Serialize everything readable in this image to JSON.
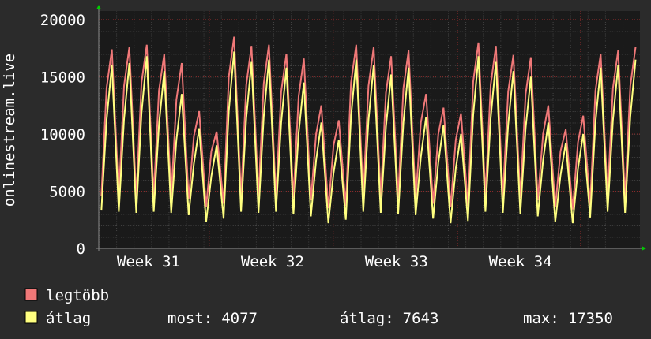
{
  "chart_data": {
    "type": "line",
    "ylabel": "onlinestream.live",
    "x": [
      0.15,
      0.45,
      0.75,
      1.15,
      1.45,
      1.75,
      2.15,
      2.45,
      2.75,
      3.15,
      3.45,
      3.75,
      4.15,
      4.45,
      4.75,
      5.15,
      5.45,
      5.75,
      6.15,
      6.45,
      6.75,
      7.15,
      7.45,
      7.75,
      8.15,
      8.45,
      8.75,
      9.15,
      9.45,
      9.75,
      10.15,
      10.45,
      10.75,
      11.15,
      11.45,
      11.75,
      12.15,
      12.45,
      12.75,
      13.15,
      13.45,
      13.75,
      14.15,
      14.45,
      14.75,
      15.15,
      15.45,
      15.75,
      16.15,
      16.45,
      16.75,
      17.15,
      17.45,
      17.75,
      18.15,
      18.45,
      18.75,
      19.15,
      19.45,
      19.75,
      20.15,
      20.45,
      20.75,
      21.15,
      21.45,
      21.75,
      22.15,
      22.45,
      22.75,
      23.15,
      23.45,
      23.75,
      24.15,
      24.45,
      24.75,
      25.15,
      25.45,
      25.75,
      26.15,
      26.45,
      26.75,
      27.15,
      27.45,
      27.75,
      28.15,
      28.45,
      28.75,
      29.15,
      29.45,
      29.75,
      30.15,
      30.45,
      30.75
    ],
    "series": [
      {
        "name": "legtöbb",
        "color": "#f07878",
        "values": [
          4600,
          14000,
          17400,
          4500,
          14200,
          17600,
          4400,
          14500,
          17800,
          4600,
          13800,
          17000,
          4500,
          13000,
          16200,
          4300,
          9800,
          12000,
          3600,
          8500,
          10200,
          3900,
          15000,
          18500,
          4500,
          14300,
          17700,
          4600,
          14400,
          17800,
          4500,
          13700,
          17000,
          4400,
          13300,
          16600,
          4200,
          10000,
          12500,
          3500,
          9000,
          11200,
          3700,
          14500,
          17800,
          4600,
          14200,
          17600,
          4500,
          13600,
          16800,
          4400,
          14000,
          17300,
          4300,
          11000,
          13500,
          3900,
          10000,
          12300,
          3600,
          9500,
          11800,
          3700,
          14600,
          18000,
          4600,
          14300,
          17700,
          4500,
          13700,
          16900,
          4400,
          13500,
          16700,
          4200,
          10000,
          12500,
          3600,
          8500,
          10400,
          3400,
          9300,
          11600,
          3800,
          13800,
          17000,
          4500,
          14000,
          17300,
          4400,
          14200,
          17600
        ]
      },
      {
        "name": "átlag",
        "color": "#ffff80",
        "values": [
          3300,
          11200,
          16000,
          3200,
          11300,
          16200,
          3100,
          11800,
          16800,
          3200,
          10800,
          15500,
          3100,
          9500,
          13500,
          2900,
          7400,
          10500,
          2300,
          6300,
          9000,
          2600,
          12000,
          17200,
          3200,
          11400,
          16300,
          3100,
          11500,
          16500,
          3200,
          11000,
          15800,
          3000,
          10100,
          14500,
          2800,
          7700,
          11000,
          2200,
          6600,
          9500,
          2500,
          11500,
          16500,
          3200,
          11200,
          16000,
          3100,
          10600,
          15200,
          3000,
          11000,
          15800,
          2900,
          8000,
          11500,
          2600,
          7500,
          10800,
          2200,
          7000,
          10000,
          2400,
          11700,
          16800,
          3200,
          11400,
          16300,
          3100,
          10800,
          15500,
          3000,
          10500,
          15000,
          2800,
          7700,
          11000,
          2300,
          6400,
          9200,
          2200,
          7000,
          10000,
          2700,
          11000,
          15800,
          3200,
          11200,
          16000,
          3100,
          11500,
          16500
        ]
      }
    ],
    "xlim": [
      0,
      31
    ],
    "xticks": [
      {
        "value": 2.85,
        "label": "Week 31"
      },
      {
        "value": 9.95,
        "label": "Week 32"
      },
      {
        "value": 17.05,
        "label": "Week 33"
      },
      {
        "value": 24.15,
        "label": "Week 34"
      }
    ],
    "xgrid": [
      6.33,
      13.43,
      20.55,
      27.6
    ],
    "ylim": [
      0,
      20750
    ],
    "yticks": [
      0,
      5000,
      10000,
      15000,
      20000
    ],
    "grid": true,
    "stats": [
      {
        "label": "most:",
        "value": 4077
      },
      {
        "label": "átlag:",
        "value": 7643
      },
      {
        "label": "max:",
        "value": 17350
      }
    ]
  }
}
